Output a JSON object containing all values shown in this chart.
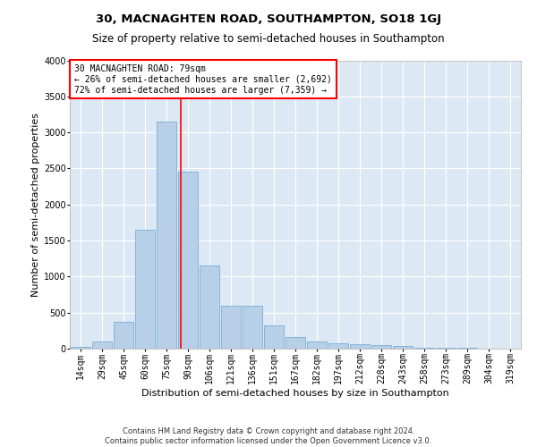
{
  "title": "30, MACNAGHTEN ROAD, SOUTHAMPTON, SO18 1GJ",
  "subtitle": "Size of property relative to semi-detached houses in Southampton",
  "xlabel": "Distribution of semi-detached houses by size in Southampton",
  "ylabel": "Number of semi-detached properties",
  "footnote1": "Contains HM Land Registry data © Crown copyright and database right 2024.",
  "footnote2": "Contains public sector information licensed under the Open Government Licence v3.0.",
  "categories": [
    "14sqm",
    "29sqm",
    "45sqm",
    "60sqm",
    "75sqm",
    "90sqm",
    "106sqm",
    "121sqm",
    "136sqm",
    "151sqm",
    "167sqm",
    "182sqm",
    "197sqm",
    "212sqm",
    "228sqm",
    "243sqm",
    "258sqm",
    "273sqm",
    "289sqm",
    "304sqm",
    "319sqm"
  ],
  "values": [
    30,
    100,
    370,
    1650,
    3150,
    2450,
    1150,
    600,
    600,
    320,
    160,
    100,
    80,
    65,
    55,
    40,
    10,
    10,
    10,
    5,
    5
  ],
  "bar_color": "#b8cfe8",
  "bar_edge_color": "#7aadd4",
  "annotation_box_text": "30 MACNAGHTEN ROAD: 79sqm\n← 26% of semi-detached houses are smaller (2,692)\n72% of semi-detached houses are larger (7,359) →",
  "annotation_box_color": "white",
  "annotation_box_edge_color": "red",
  "vline_color": "red",
  "vline_x_index": 4.67,
  "ylim": [
    0,
    4000
  ],
  "yticks": [
    0,
    500,
    1000,
    1500,
    2000,
    2500,
    3000,
    3500,
    4000
  ],
  "background_color": "#ffffff",
  "plot_bg_color": "#dde8f5",
  "title_fontsize": 9.5,
  "subtitle_fontsize": 8.5,
  "axis_label_fontsize": 8,
  "tick_fontsize": 7,
  "annotation_fontsize": 7,
  "footnote_fontsize": 6
}
